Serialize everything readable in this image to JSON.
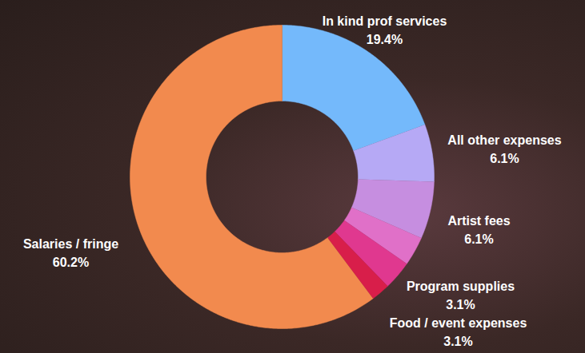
{
  "chart_data": {
    "type": "donut",
    "categories": [
      "In kind prof services",
      "All other expenses",
      "Artist fees",
      "Program supplies",
      "Food / event expenses",
      null,
      "Salaries / fringe"
    ],
    "values": [
      19.4,
      6.1,
      6.1,
      3.1,
      3.1,
      2.0,
      60.2
    ],
    "value_labels": [
      "19.4%",
      "6.1%",
      "6.1%",
      "3.1%",
      "3.1%",
      null,
      "60.2%"
    ],
    "colors": [
      "#74b9fb",
      "#b6a9f5",
      "#c68ee0",
      "#e070c8",
      "#e0388f",
      "#d81e4a",
      "#f28a4e"
    ],
    "data_labels": true
  }
}
